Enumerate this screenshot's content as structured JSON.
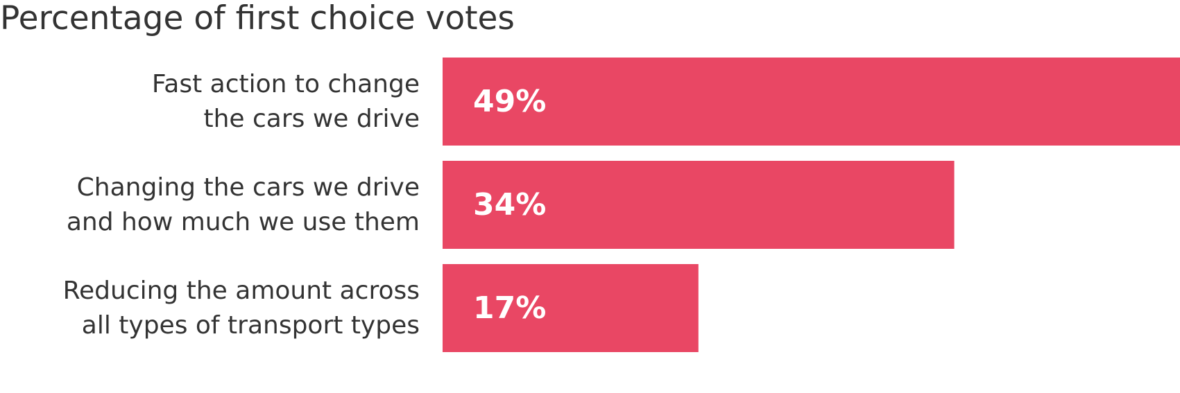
{
  "chart_data": {
    "type": "bar",
    "orientation": "horizontal",
    "title": "Percentage of first choice votes",
    "categories": [
      [
        "Fast action to change",
        "the cars we drive"
      ],
      [
        "Changing the cars we drive",
        "and how much we use them"
      ],
      [
        "Reducing the amount across",
        "all types of transport types"
      ]
    ],
    "values": [
      49,
      34,
      17
    ],
    "value_labels": [
      "49%",
      "34%",
      "17%"
    ],
    "xlim": [
      0,
      49
    ],
    "bar_color": "#e94764",
    "grid": false,
    "legend": false
  }
}
